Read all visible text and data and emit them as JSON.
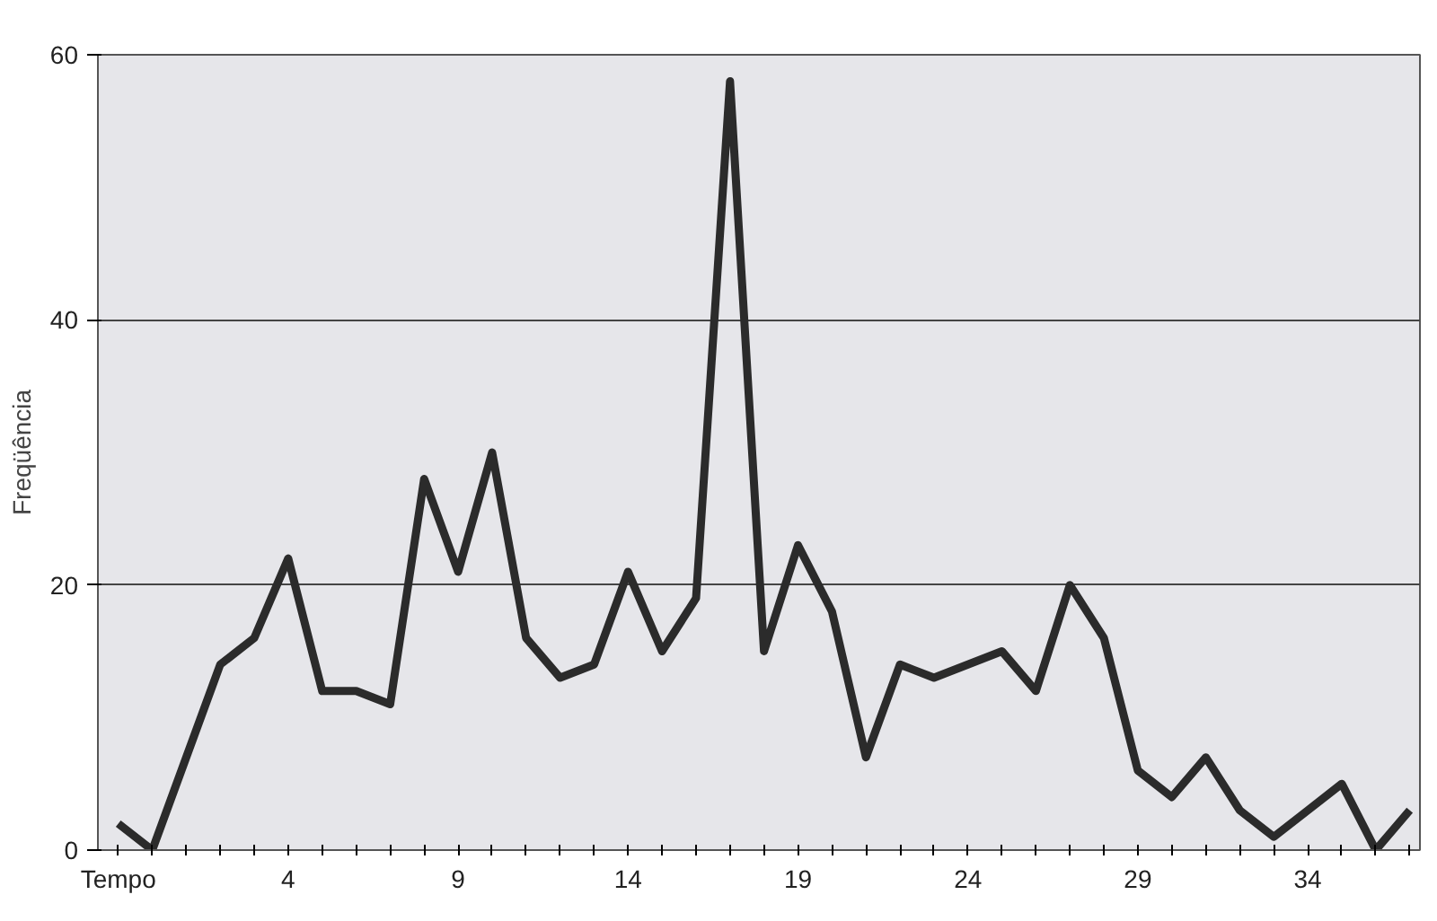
{
  "chart_data": {
    "type": "line",
    "ylabel": "Freqüência",
    "categories": [
      "Tempo",
      null,
      null,
      null,
      null,
      "4",
      null,
      null,
      null,
      null,
      "9",
      null,
      null,
      null,
      null,
      "14",
      null,
      null,
      null,
      null,
      "19",
      null,
      null,
      null,
      null,
      "24",
      null,
      null,
      null,
      null,
      "29",
      null,
      null,
      null,
      null,
      "34",
      null,
      null,
      null
    ],
    "series": [
      {
        "color": "#2b2b2b",
        "values": [
          2,
          0,
          7,
          14,
          16,
          22,
          12,
          12,
          11,
          28,
          21,
          30,
          16,
          13,
          14,
          21,
          15,
          19,
          58,
          15,
          23,
          18,
          7,
          14,
          13,
          14,
          15,
          12,
          20,
          16,
          6,
          4,
          7,
          3,
          1,
          3,
          5,
          0,
          3
        ]
      }
    ],
    "ylim": [
      0,
      60
    ],
    "yticks": [
      0,
      20,
      40,
      60
    ],
    "grid": "y",
    "marker": "none",
    "line_style": "solid"
  }
}
